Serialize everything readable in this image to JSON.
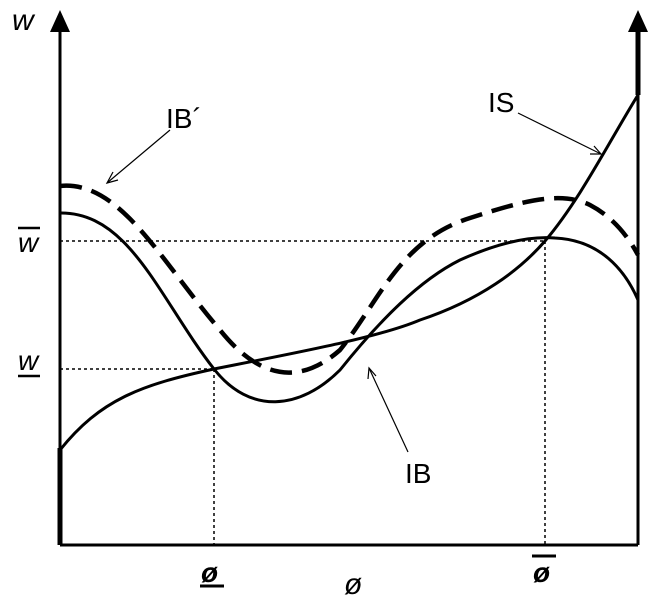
{
  "diagram": {
    "y_axis_label": "w",
    "x_axis_label": "ø",
    "y_ticks": {
      "upper": "w",
      "lower": "w"
    },
    "x_ticks": {
      "lower": "ø",
      "upper": "ø"
    },
    "curves": {
      "is_label": "IS",
      "ib_label": "IB",
      "ib_prime_label": "IB´"
    }
  }
}
